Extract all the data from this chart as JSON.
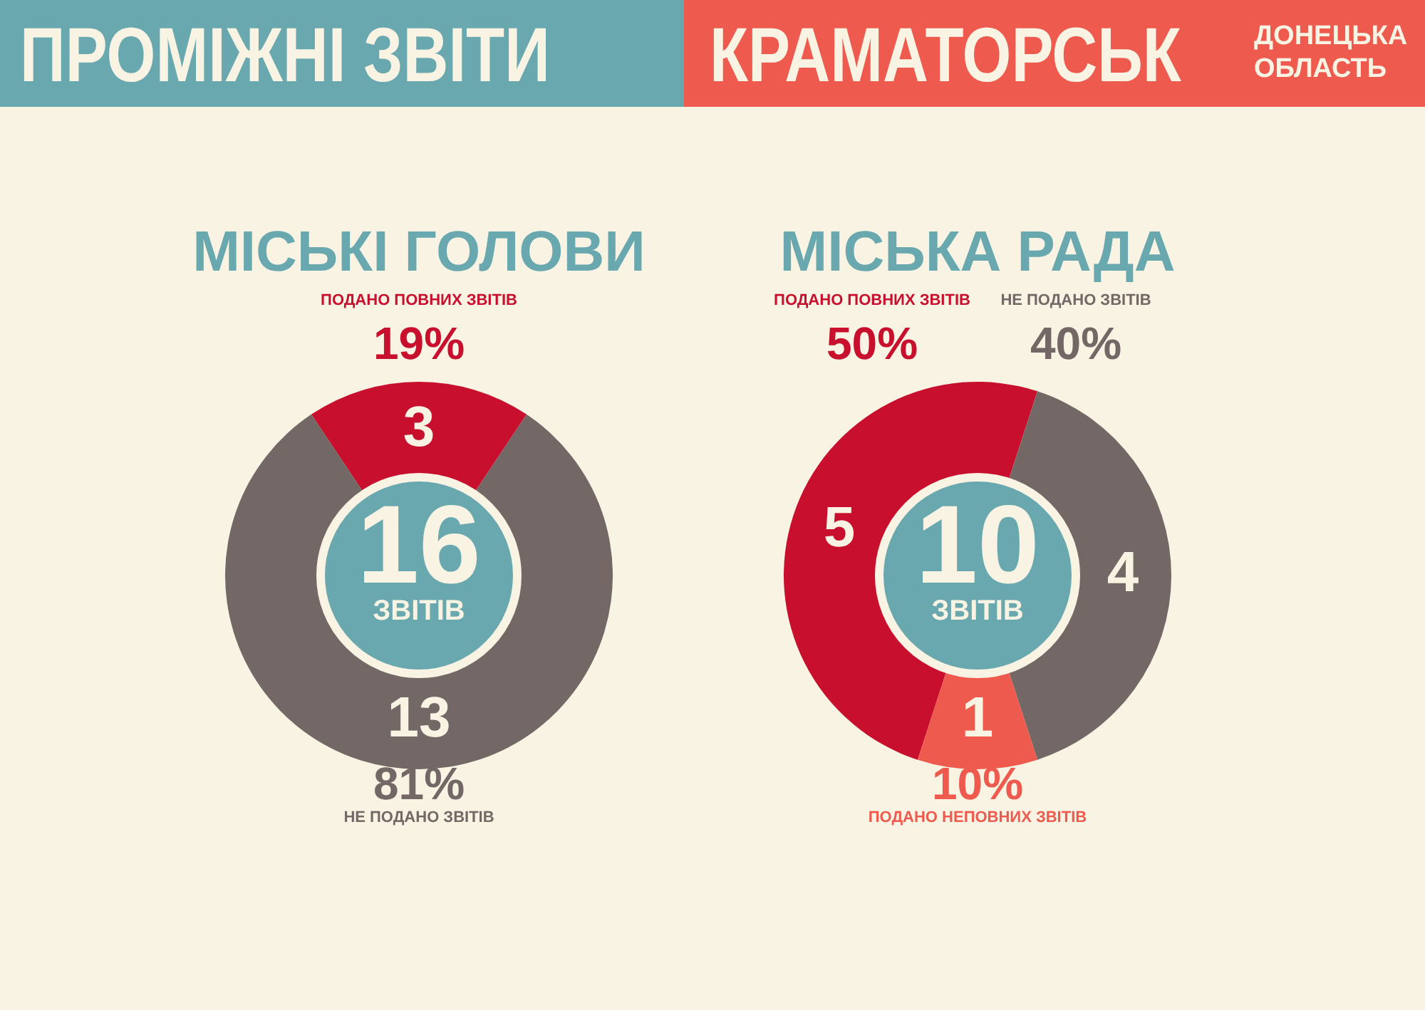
{
  "chart_data": [
    {
      "type": "other",
      "title": "ПРОМІЖНІ ЗВІТИ",
      "subtitle": "КРАМАТОРСЬК",
      "annotations": [
        "ДОНЕЦЬКА ОБЛАСТЬ"
      ]
    },
    {
      "type": "donut",
      "title": "МІСЬКІ ГОЛОВИ",
      "categories": [
        "ПОДАНО ПОВНИХ ЗВІТІВ",
        "НЕ ПОДАНО ЗВІТІВ"
      ],
      "values": [
        3,
        13
      ],
      "colors": [
        "#c8102e",
        "#736865"
      ],
      "data_labels": true,
      "legend": false,
      "annotations": [
        "16",
        "ЗВІТІВ",
        {
          "text": "19%",
          "x": "ПОДАНО ПОВНИХ ЗВІТІВ"
        },
        {
          "text": "81%",
          "x": "НЕ ПОДАНО ЗВІТІВ"
        }
      ]
    },
    {
      "type": "donut",
      "title": "МІСЬКА РАДА",
      "categories": [
        "ПОДАНО ПОВНИХ ЗВІТІВ",
        "НЕ ПОДАНО ЗВІТІВ",
        "ПОДАНО НЕПОВНИХ ЗВІТІВ"
      ],
      "values": [
        5,
        4,
        1
      ],
      "colors": [
        "#c8102e",
        "#736865",
        "#ef5a4f"
      ],
      "data_labels": true,
      "legend": false,
      "annotations": [
        "10",
        "ЗВІТІВ",
        {
          "text": "50%",
          "x": "ПОДАНО ПОВНИХ ЗВІТІВ"
        },
        {
          "text": "40%",
          "x": "НЕ ПОДАНО ЗВІТІВ"
        },
        {
          "text": "10%",
          "x": "ПОДАНО НЕПОВНИХ ЗВІТІВ"
        }
      ]
    }
  ]
}
